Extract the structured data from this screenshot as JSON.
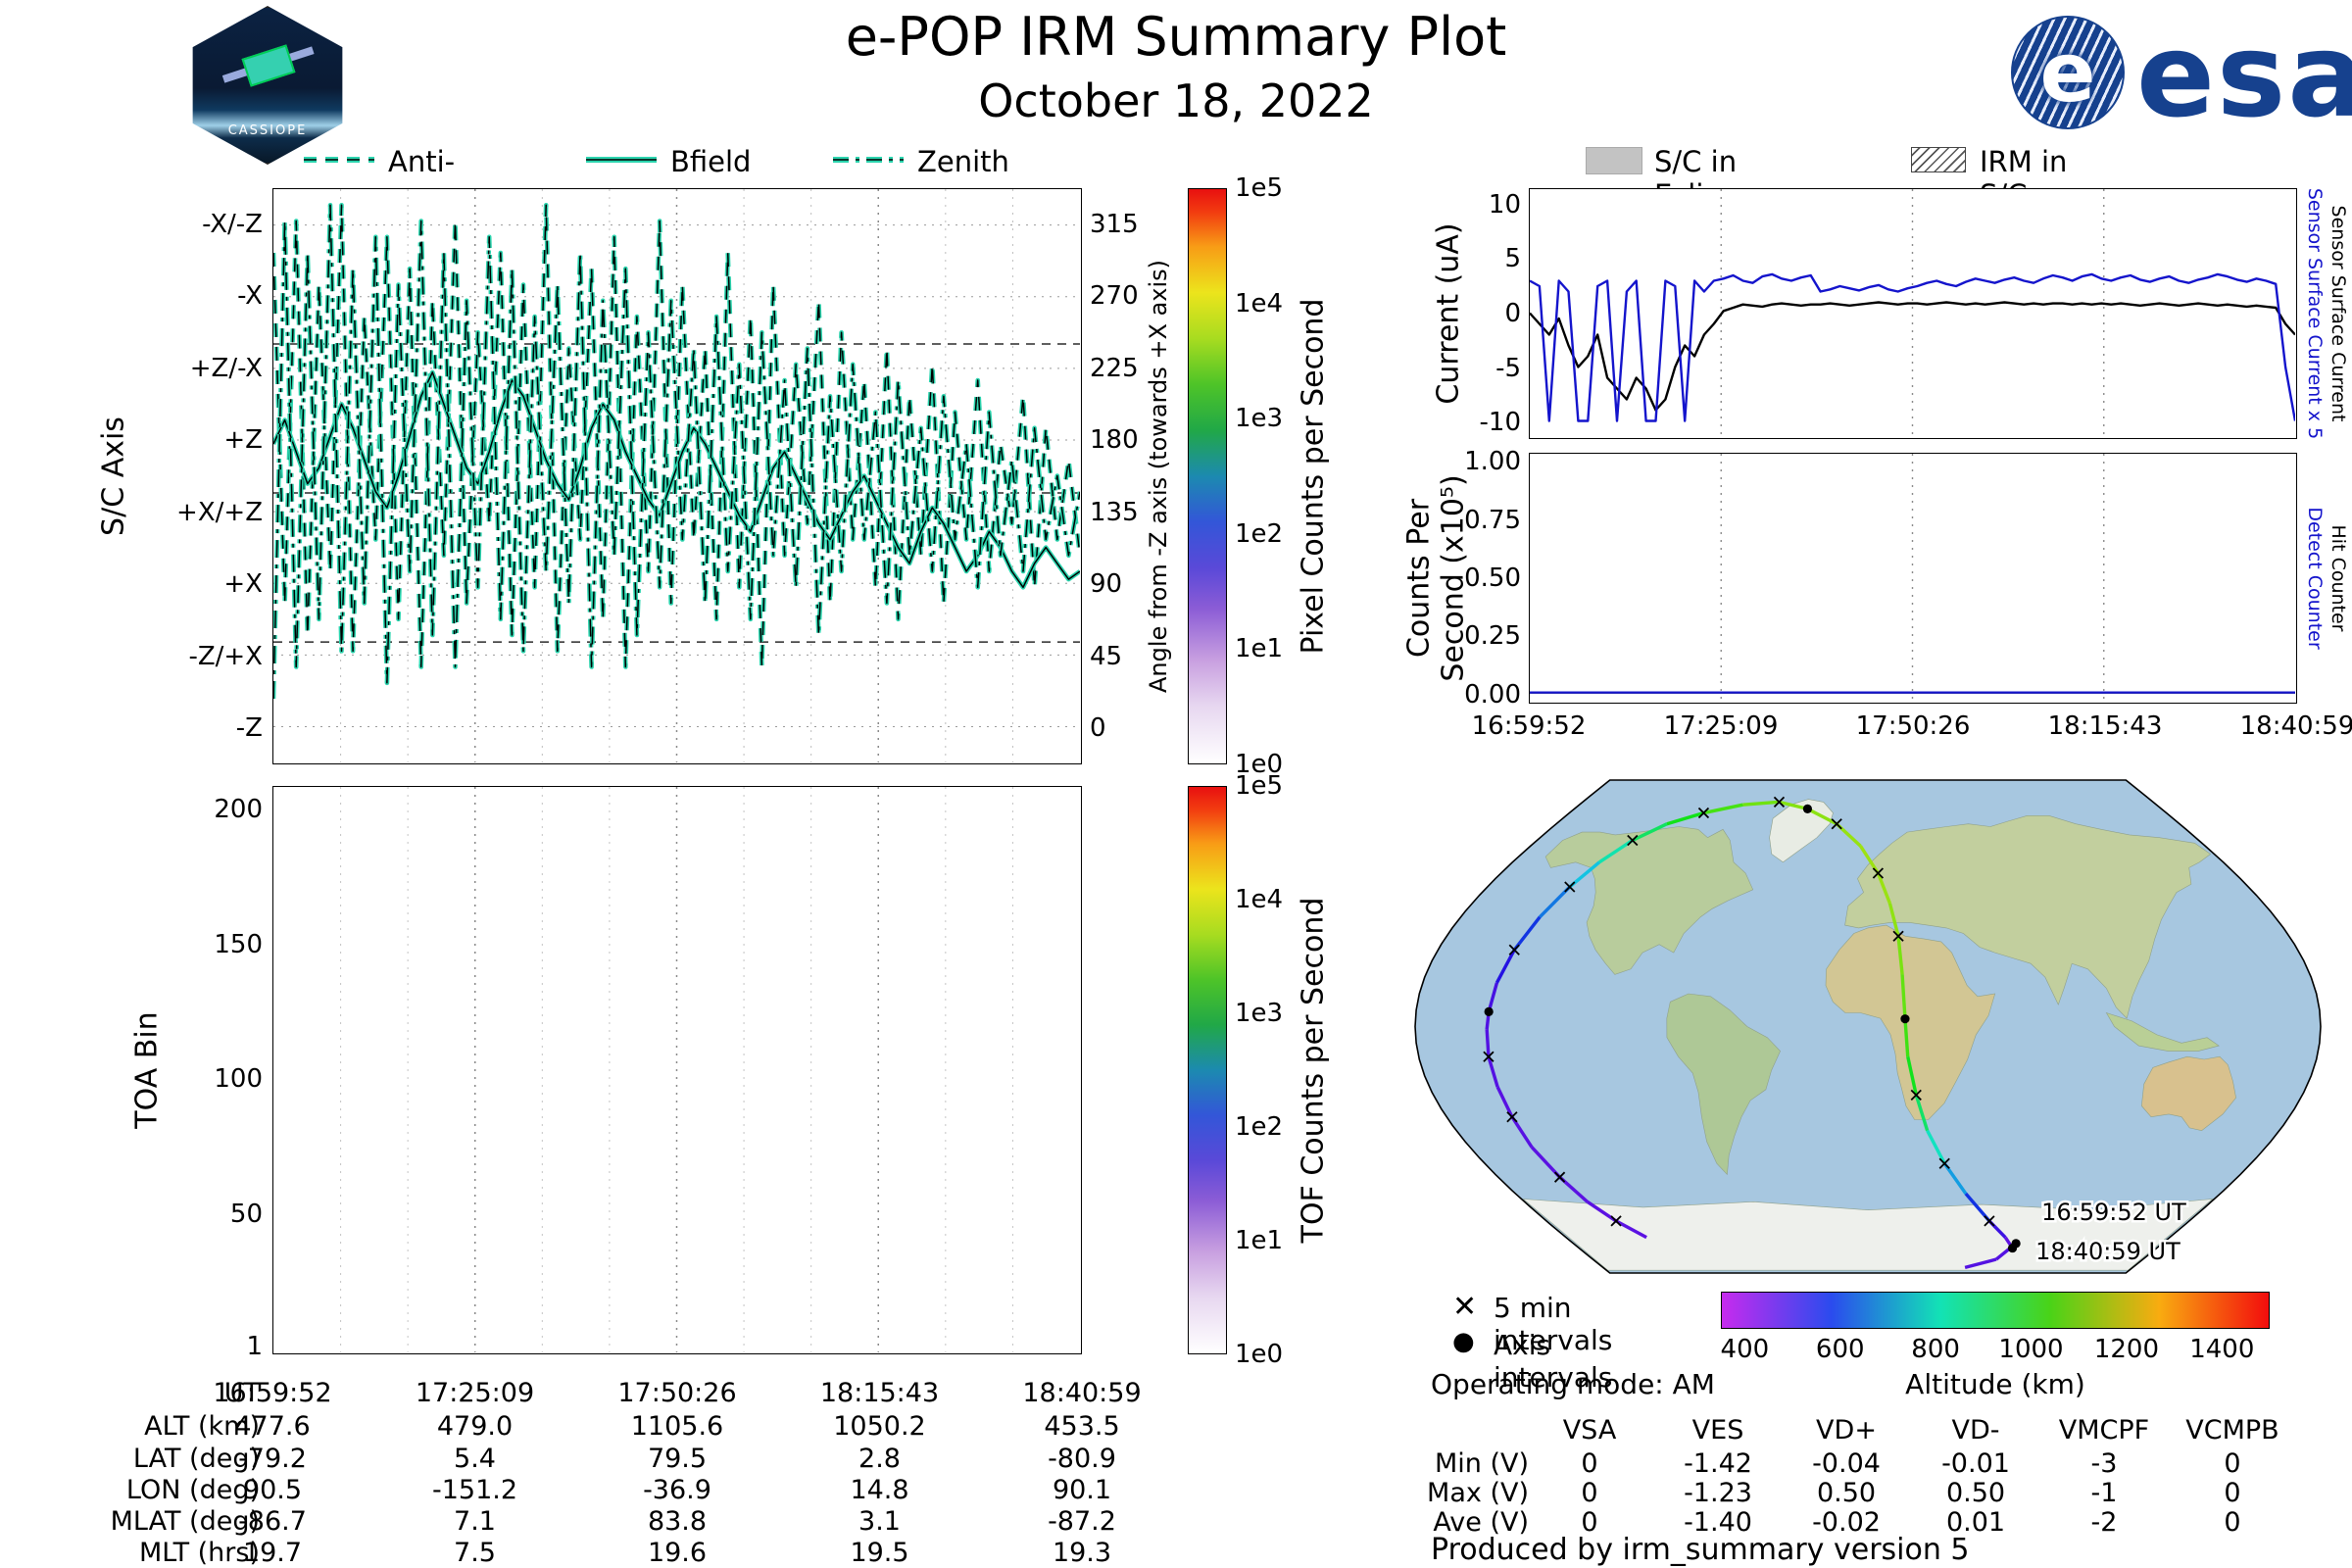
{
  "header": {
    "title": "e-POP IRM Summary Plot",
    "date": "October 18, 2022",
    "patch_label": "CASSIOPE",
    "esa_label": "esa",
    "esa_e": "e"
  },
  "left_top_chart": {
    "legend": [
      {
        "label": "Anti-ram"
      },
      {
        "label": "Bfield"
      },
      {
        "label": "Zenith"
      }
    ],
    "y_label": "S/C Axis",
    "y_ticks": [
      "-X/-Z",
      "-X",
      "+Z/-X",
      "+Z",
      "+X/+Z",
      "+X",
      "-Z/+X",
      "-Z"
    ],
    "right_axis_label": "Angle from -Z axis (towards +X axis)",
    "right_ticks": [
      "315",
      "270",
      "225",
      "180",
      "135",
      "90",
      "45",
      "0"
    ],
    "colorbar": {
      "label": "Pixel Counts per Second",
      "ticks": [
        "1e5",
        "1e4",
        "1e3",
        "1e2",
        "1e1",
        "1e0"
      ]
    }
  },
  "left_bottom_chart": {
    "y_label": "TOA Bin",
    "y_tick_labels": [
      "200",
      "150",
      "100",
      "50",
      "1"
    ],
    "y_tick_values": [
      200,
      150,
      100,
      50,
      1
    ],
    "colorbar": {
      "label": "TOF Counts per Second",
      "ticks": [
        "1e5",
        "1e4",
        "1e3",
        "1e2",
        "1e1",
        "1e0"
      ]
    }
  },
  "info_table": {
    "row_labels": [
      "UT",
      "ALT (km)",
      "LAT (deg)",
      "LON (deg)",
      "MLAT (deg)",
      "MLT (hrs)"
    ],
    "columns": [
      [
        "16:59:52",
        "477.6",
        "-79.2",
        "90.5",
        "-86.7",
        "19.7"
      ],
      [
        "17:25:09",
        "479.0",
        "5.4",
        "-151.2",
        "7.1",
        "7.5"
      ],
      [
        "17:50:26",
        "1105.6",
        "79.5",
        "-36.9",
        "83.8",
        "19.6"
      ],
      [
        "18:15:43",
        "1050.2",
        "2.8",
        "14.8",
        "3.1",
        "19.5"
      ],
      [
        "18:40:59",
        "453.5",
        "-80.9",
        "90.1",
        "-87.2",
        "19.3"
      ]
    ]
  },
  "right_charts": {
    "legend": [
      {
        "label": "S/C in Eclipse"
      },
      {
        "label": "IRM in S/C Shadow"
      }
    ],
    "x_ticks": [
      "16:59:52",
      "17:25:09",
      "17:50:26",
      "18:15:43",
      "18:40:59"
    ],
    "current": {
      "ylabel": "Current (uA)",
      "y_tick_labels": [
        "10",
        "5",
        "0",
        "-5",
        "-10"
      ],
      "right_label_blue": "Sensor Surface Current x 5",
      "right_label_black": "Sensor Surface Current"
    },
    "counts": {
      "ylabel_line1": "Counts Per",
      "ylabel_line2": "Second (x10⁵)",
      "y_tick_labels": [
        "1.00",
        "0.75",
        "0.50",
        "0.25",
        "0.00"
      ],
      "right_label_blue": "Detect Counter",
      "right_label_black": "Hit Counter"
    }
  },
  "map": {
    "cross_label": "5 min intervals",
    "dot_label": "Axis intervals",
    "operating_mode": "Operating mode: AM",
    "colorbar_label": "Altitude (km)",
    "colorbar_ticks": [
      "400",
      "600",
      "800",
      "1000",
      "1200",
      "1400"
    ],
    "annotation_start": "16:59:52 UT",
    "annotation_end": "18:40:59 UT"
  },
  "volt_table": {
    "headers": [
      "VSA",
      "VES",
      "VD+",
      "VD-",
      "VMCPF",
      "VCMPB"
    ],
    "rows": [
      {
        "label": "Min (V)",
        "values": [
          "0",
          "-1.42",
          "-0.04",
          "-0.01",
          "-3",
          "0"
        ]
      },
      {
        "label": "Max (V)",
        "values": [
          "0",
          "-1.23",
          "0.50",
          "0.50",
          "-1",
          "0"
        ]
      },
      {
        "label": "Ave (V)",
        "values": [
          "0",
          "-1.40",
          "-0.02",
          "0.01",
          "-2",
          "0"
        ]
      }
    ]
  },
  "footer": {
    "text": "Produced by irm_summary version 5"
  },
  "chart_data": [
    {
      "type": "line",
      "id": "attitude",
      "ylabel": "S/C Axis",
      "ylim": [
        0,
        360
      ],
      "y_categories": [
        "-X/-Z",
        "-X",
        "+Z/-X",
        "+Z",
        "+X/+Z",
        "+X",
        "-Z/+X",
        "-Z"
      ],
      "right_axis": {
        "label": "Angle from -Z axis (towards +X axis)",
        "ticks": [
          315,
          270,
          225,
          180,
          135,
          90,
          45,
          0
        ]
      },
      "series": [
        {
          "name": "Anti-ram",
          "linestyle": "dashed",
          "values": [
            320,
            100,
            340,
            80,
            300,
            120,
            350,
            70,
            280,
            140,
            330,
            90,
            310,
            60,
            290,
            130,
            340,
            100,
            270,
            150,
            320,
            80,
            300,
            110,
            350,
            70,
            260,
            140,
            310,
            90,
            330,
            60,
            280,
            120,
            340,
            100,
            300,
            140,
            260,
            90,
            320,
            110,
            280,
            60,
            300,
            130,
            250,
            150,
            290,
            100,
            270,
            140,
            240,
            110,
            260,
            90,
            230,
            130,
            250,
            100,
            220,
            140,
            240,
            120,
            200,
            150,
            230,
            110,
            210,
            140,
            190,
            130
          ]
        },
        {
          "name": "Bfield",
          "linestyle": "solid",
          "values": [
            200,
            215,
            195,
            175,
            185,
            205,
            225,
            210,
            190,
            170,
            160,
            180,
            205,
            230,
            245,
            225,
            205,
            185,
            175,
            195,
            220,
            240,
            230,
            210,
            190,
            175,
            165,
            185,
            210,
            225,
            215,
            195,
            180,
            165,
            155,
            175,
            195,
            210,
            200,
            185,
            170,
            155,
            145,
            165,
            185,
            195,
            180,
            165,
            150,
            140,
            155,
            170,
            180,
            165,
            150,
            135,
            125,
            145,
            160,
            150,
            135,
            120,
            130,
            145,
            135,
            120,
            110,
            125,
            135,
            125,
            115,
            120
          ]
        },
        {
          "name": "Zenith",
          "linestyle": "dashdot",
          "values": [
            40,
            340,
            60,
            320,
            90,
            350,
            70,
            310,
            100,
            330,
            50,
            300,
            120,
            340,
            80,
            320,
            60,
            290,
            110,
            330,
            90,
            310,
            70,
            280,
            120,
            300,
            100,
            320,
            60,
            290,
            130,
            310,
            80,
            270,
            110,
            290,
            140,
            260,
            100,
            280,
            120,
            250,
            90,
            270,
            130,
            240,
            110,
            260,
            80,
            230,
            120,
            250,
            140,
            220,
            100,
            240,
            130,
            210,
            120,
            230,
            140,
            200,
            110,
            220,
            130,
            190,
            120,
            210,
            140,
            180,
            130,
            170
          ]
        }
      ]
    },
    {
      "type": "line",
      "id": "sensor-current",
      "ylabel": "Current (uA)",
      "ylim": [
        -10,
        10
      ],
      "yticks": [
        10,
        5,
        0,
        -5,
        -10
      ],
      "x_ticks": [
        "16:59:52",
        "17:25:09",
        "17:50:26",
        "18:15:43",
        "18:40:59"
      ],
      "series": [
        {
          "name": "Sensor Surface Current x 5",
          "color": "#1414cc",
          "values": [
            3,
            2.5,
            -10,
            3,
            2,
            -10,
            -10,
            2.5,
            3,
            -10,
            2,
            3,
            -10,
            -10,
            3,
            2.5,
            -10,
            3,
            2,
            3,
            3.2,
            3.5,
            3,
            2.8,
            3.4,
            3.6,
            3.2,
            3,
            3.3,
            3.5,
            2,
            2.2,
            2.5,
            2.3,
            2.1,
            2.4,
            2.6,
            2.2,
            2,
            2.3,
            2.5,
            2.8,
            3,
            2.7,
            2.5,
            2.9,
            3.2,
            3,
            2.8,
            3.1,
            3.3,
            3,
            2.8,
            3.2,
            3.5,
            3.3,
            3,
            3.4,
            3.6,
            3.2,
            3,
            3.3,
            3.5,
            3.1,
            2.9,
            3.2,
            3.4,
            3,
            2.8,
            3.1,
            3.3,
            3.6,
            3.4,
            3.1,
            2.9,
            3.2,
            3,
            2.7,
            -5,
            -10
          ]
        },
        {
          "name": "Sensor Surface Current",
          "color": "#000000",
          "values": [
            0,
            -1,
            -2,
            -0.5,
            -3,
            -5,
            -4,
            -2,
            -6,
            -7,
            -8,
            -6,
            -7,
            -9,
            -8,
            -5,
            -3,
            -4,
            -2,
            -1,
            0.2,
            0.5,
            0.8,
            0.7,
            0.6,
            0.8,
            0.9,
            0.8,
            0.7,
            0.8,
            0.8,
            0.9,
            0.8,
            0.7,
            0.8,
            0.9,
            1,
            0.9,
            0.8,
            0.9,
            0.9,
            0.8,
            0.9,
            1,
            0.9,
            0.8,
            0.9,
            0.8,
            0.9,
            1,
            0.9,
            0.8,
            0.9,
            0.8,
            0.9,
            0.9,
            0.8,
            0.9,
            0.8,
            0.9,
            0.8,
            0.9,
            0.8,
            0.7,
            0.8,
            0.9,
            0.8,
            0.7,
            0.8,
            0.9,
            0.8,
            0.7,
            0.8,
            0.7,
            0.6,
            0.7,
            0.6,
            0.5,
            -1,
            -2
          ]
        }
      ]
    },
    {
      "type": "line",
      "id": "counters",
      "ylabel": "Counts Per Second (x10⁵)",
      "ylim": [
        0,
        1
      ],
      "yticks": [
        1.0,
        0.75,
        0.5,
        0.25,
        0.0
      ],
      "x_ticks": [
        "16:59:52",
        "17:25:09",
        "17:50:26",
        "18:15:43",
        "18:40:59"
      ],
      "series": [
        {
          "name": "Detect Counter",
          "color": "#1414cc",
          "values": [
            0,
            0
          ]
        },
        {
          "name": "Hit Counter",
          "color": "#000000",
          "values": [
            0,
            0
          ]
        }
      ]
    },
    {
      "type": "heatmap",
      "id": "toa",
      "ylabel": "TOA Bin",
      "yticks": [
        200,
        150,
        100,
        50,
        1
      ],
      "values": []
    },
    {
      "type": "map",
      "id": "ground-track",
      "altitude_range": [
        350,
        1500
      ],
      "colorbar": {
        "label": "Altitude (km)",
        "ticks": [
          400,
          600,
          800,
          1000,
          1200,
          1400
        ]
      },
      "track_start": [
        [
          90.5,
          -79.2,
          478
        ],
        [
          84,
          -85,
          476
        ],
        [
          66,
          -88,
          474
        ]
      ],
      "track": [
        [
          -132,
          -77,
          470
        ],
        [
          -141,
          -71,
          469
        ],
        [
          -147,
          -64,
          468
        ],
        [
          -150,
          -55,
          469
        ],
        [
          -152,
          -44,
          471
        ],
        [
          -152,
          -33,
          472
        ],
        [
          -152,
          -22,
          474
        ],
        [
          -152,
          -11,
          476
        ],
        [
          -151.5,
          -1,
          478
        ],
        [
          -151,
          5.4,
          479
        ],
        [
          -150,
          16,
          505
        ],
        [
          -148,
          28,
          550
        ],
        [
          -145,
          40,
          615
        ],
        [
          -141,
          51,
          690
        ],
        [
          -136,
          60,
          775
        ],
        [
          -128,
          68,
          860
        ],
        [
          -116,
          74,
          940
        ],
        [
          -99,
          78,
          1010
        ],
        [
          -78,
          81,
          1065
        ],
        [
          -56,
          82,
          1095
        ],
        [
          -37,
          79.5,
          1105
        ],
        [
          -18,
          74,
          1116
        ],
        [
          -4,
          66,
          1124
        ],
        [
          5,
          56,
          1128
        ],
        [
          10,
          45,
          1122
        ],
        [
          13,
          33,
          1103
        ],
        [
          14,
          19,
          1078
        ],
        [
          14.8,
          2.8,
          1050
        ],
        [
          16,
          -11,
          1005
        ],
        [
          20,
          -25,
          938
        ],
        [
          26,
          -38,
          852
        ],
        [
          36,
          -50,
          748
        ],
        [
          50,
          -61,
          635
        ],
        [
          68,
          -71,
          525
        ],
        [
          82,
          -77,
          478
        ],
        [
          90.1,
          -80.9,
          453
        ]
      ],
      "dot_indices": [
        9,
        20,
        27,
        35
      ],
      "annotations": [
        {
          "text": "16:59:52 UT"
        },
        {
          "text": "18:40:59 UT"
        }
      ]
    }
  ]
}
